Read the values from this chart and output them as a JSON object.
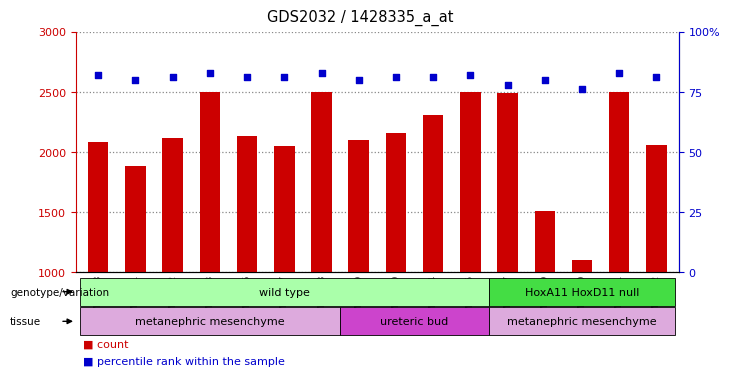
{
  "title": "GDS2032 / 1428335_a_at",
  "samples": [
    "GSM87678",
    "GSM87681",
    "GSM87682",
    "GSM87683",
    "GSM87686",
    "GSM87687",
    "GSM87688",
    "GSM87679",
    "GSM87680",
    "GSM87684",
    "GSM87685",
    "GSM87677",
    "GSM87689",
    "GSM87690",
    "GSM87691",
    "GSM87692"
  ],
  "counts": [
    2080,
    1880,
    2120,
    2500,
    2130,
    2050,
    2500,
    2100,
    2160,
    2310,
    2500,
    2490,
    1510,
    1100,
    2500,
    2060
  ],
  "percentile_ranks": [
    82,
    80,
    81,
    83,
    81,
    81,
    83,
    80,
    81,
    81,
    82,
    78,
    80,
    76,
    83,
    81
  ],
  "ylim_left": [
    1000,
    3000
  ],
  "ylim_right": [
    0,
    100
  ],
  "yticks_left": [
    1000,
    1500,
    2000,
    2500,
    3000
  ],
  "yticks_right": [
    0,
    25,
    50,
    75,
    100
  ],
  "bar_color": "#cc0000",
  "dot_color": "#0000cc",
  "dot_size": 25,
  "grid_color": "#888888",
  "genotype_groups": [
    {
      "label": "wild type",
      "start": 0,
      "end": 10,
      "color": "#aaffaa"
    },
    {
      "label": "HoxA11 HoxD11 null",
      "start": 11,
      "end": 15,
      "color": "#44dd44"
    }
  ],
  "tissue_groups": [
    {
      "label": "metanephric mesenchyme",
      "start": 0,
      "end": 6,
      "color": "#ddaadd"
    },
    {
      "label": "ureteric bud",
      "start": 7,
      "end": 10,
      "color": "#cc44cc"
    },
    {
      "label": "metanephric mesenchyme",
      "start": 11,
      "end": 15,
      "color": "#ddaadd"
    }
  ],
  "left_ylabel_color": "#cc0000",
  "right_ylabel_color": "#0000cc",
  "bar_color_legend": "#cc0000",
  "dot_color_legend": "#0000cc"
}
